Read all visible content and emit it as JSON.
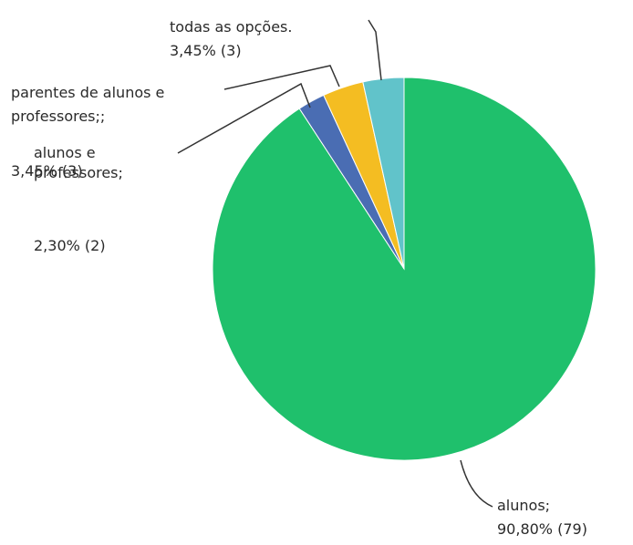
{
  "chart_data": {
    "type": "pie",
    "categories": [
      "alunos;",
      "alunos e professores;",
      "parentes de alunos e professores;;",
      "todas as opções."
    ],
    "values": [
      90.8,
      2.3,
      3.45,
      3.45
    ],
    "value_labels": [
      "90,80% (79)",
      "2,30% (2)",
      "3,45% (3)",
      "3,45% (3)"
    ],
    "colors": [
      "#1fc06c",
      "#4a6db3",
      "#f4bd22",
      "#61c3ca"
    ]
  }
}
